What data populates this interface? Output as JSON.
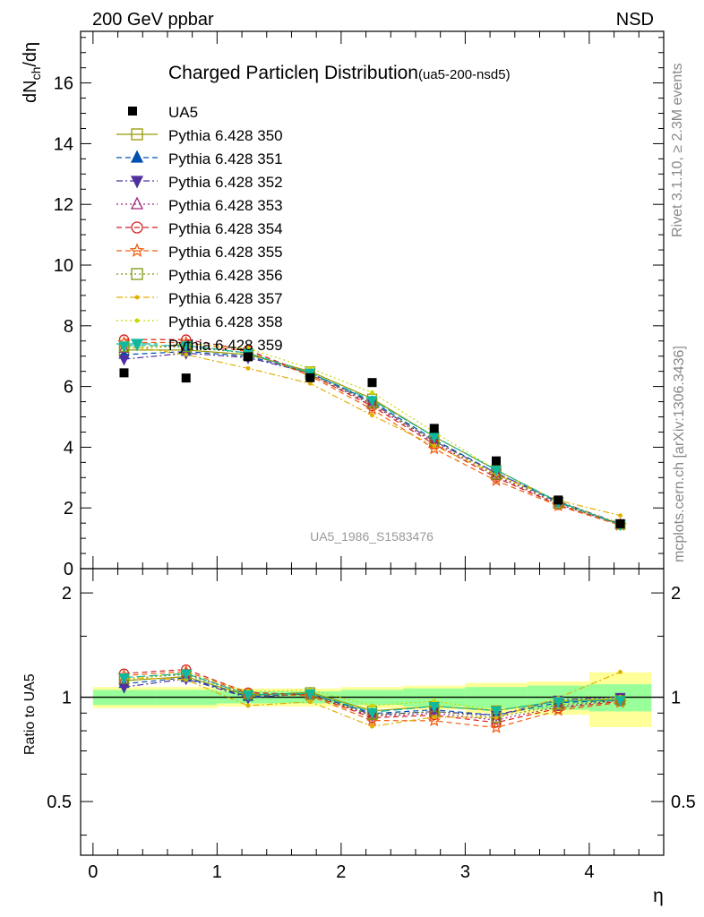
{
  "header": {
    "left": "200 GeV ppbar",
    "right": "NSD"
  },
  "side_texts": {
    "rivet": "Rivet 3.1.10, ≥ 2.3M events",
    "mcplots": "mcplots.cern.ch [arXiv:1306.3436]"
  },
  "main_plot": {
    "title": "Charged Particle",
    "title_symbol": "η",
    "title_rest": " Distribution",
    "title_tag": "(ua5-200-nsd5)",
    "ylabel_main": "dN",
    "ylabel_sub": "ch",
    "ylabel_rest": "/dη",
    "analysis_id": "UA5_1986_S1583476"
  },
  "ratio_plot": {
    "ylabel": "Ratio to UA5"
  },
  "xlabel": "η",
  "chart_data": {
    "type": "scatter",
    "x": [
      0.25,
      0.75,
      1.25,
      1.75,
      2.25,
      2.75,
      3.25,
      3.75,
      4.25
    ],
    "xlim": [
      -0.1,
      4.6
    ],
    "ylim": [
      0,
      17.7
    ],
    "ratio_ylim": [
      0.35,
      2.35
    ],
    "xticks": [
      0,
      1,
      2,
      3,
      4
    ],
    "yticks": [
      0,
      2,
      4,
      6,
      8,
      10,
      12,
      14,
      16
    ],
    "ratio_yticks": [
      0.5,
      1,
      2
    ],
    "data": {
      "name": "UA5",
      "values": [
        6.45,
        6.28,
        6.98,
        6.29,
        6.13,
        4.62,
        3.55,
        2.26,
        1.48
      ]
    },
    "ratio_band": {
      "inner": [
        [
          0.95,
          1.05
        ],
        [
          0.95,
          1.05
        ],
        [
          0.96,
          1.04
        ],
        [
          0.96,
          1.04
        ],
        [
          0.95,
          1.05
        ],
        [
          0.94,
          1.06
        ],
        [
          0.93,
          1.07
        ],
        [
          0.92,
          1.08
        ],
        [
          0.91,
          1.09
        ]
      ],
      "outer": [
        [
          0.93,
          1.07
        ],
        [
          0.93,
          1.07
        ],
        [
          0.94,
          1.06
        ],
        [
          0.94,
          1.06
        ],
        [
          0.93,
          1.07
        ],
        [
          0.92,
          1.08
        ],
        [
          0.9,
          1.1
        ],
        [
          0.89,
          1.11
        ],
        [
          0.82,
          1.18
        ]
      ]
    },
    "series": [
      {
        "name": "Pythia 6.428 350",
        "color": "#999900",
        "marker": "square-open",
        "dash": "solid",
        "values": [
          7.2,
          7.2,
          7.05,
          6.5,
          5.6,
          4.35,
          3.25,
          2.2,
          1.46
        ]
      },
      {
        "name": "Pythia 6.428 351",
        "color": "#0050b0",
        "marker": "triangle-up",
        "dash": "dash",
        "values": [
          7.05,
          7.15,
          7.0,
          6.45,
          5.5,
          4.25,
          3.15,
          2.18,
          1.45
        ]
      },
      {
        "name": "Pythia 6.428 352",
        "color": "#5030a0",
        "marker": "triangle-down",
        "dash": "dashdot",
        "values": [
          6.9,
          7.1,
          6.95,
          6.45,
          5.45,
          4.2,
          3.15,
          2.22,
          1.48
        ]
      },
      {
        "name": "Pythia 6.428 353",
        "color": "#a0207a",
        "marker": "triangle-up-open",
        "dash": "dot",
        "values": [
          7.25,
          7.35,
          7.1,
          6.4,
          5.4,
          4.15,
          3.05,
          2.12,
          1.45
        ]
      },
      {
        "name": "Pythia 6.428 354",
        "color": "#d42020",
        "marker": "circle-open",
        "dash": "dash",
        "values": [
          7.55,
          7.55,
          7.2,
          6.4,
          5.35,
          4.1,
          3.0,
          2.1,
          1.44
        ]
      },
      {
        "name": "Pythia 6.428 355",
        "color": "#f06010",
        "marker": "star-open",
        "dash": "dash",
        "values": [
          7.45,
          7.45,
          7.15,
          6.35,
          5.25,
          3.95,
          2.9,
          2.07,
          1.43
        ]
      },
      {
        "name": "Pythia 6.428 356",
        "color": "#7a9a10",
        "marker": "square-open",
        "dash": "dot",
        "values": [
          7.3,
          7.3,
          7.1,
          6.4,
          5.45,
          4.2,
          3.1,
          2.15,
          1.45
        ]
      },
      {
        "name": "Pythia 6.428 357",
        "color": "#e0b000",
        "marker": "dot",
        "dash": "dashdot",
        "values": [
          7.35,
          7.05,
          6.6,
          6.1,
          5.05,
          4.05,
          3.1,
          2.25,
          1.75
        ]
      },
      {
        "name": "Pythia 6.428 358",
        "color": "#c8d800",
        "marker": "dot",
        "dash": "dot",
        "values": [
          7.25,
          7.4,
          7.25,
          6.6,
          5.8,
          4.5,
          3.25,
          2.2,
          1.48
        ]
      },
      {
        "name": "Pythia 6.428 359",
        "color": "#10b8a0",
        "marker": "triangle-down",
        "dash": "dashlong",
        "values": [
          7.35,
          7.35,
          7.1,
          6.45,
          5.55,
          4.35,
          3.25,
          2.2,
          1.45
        ]
      }
    ]
  }
}
